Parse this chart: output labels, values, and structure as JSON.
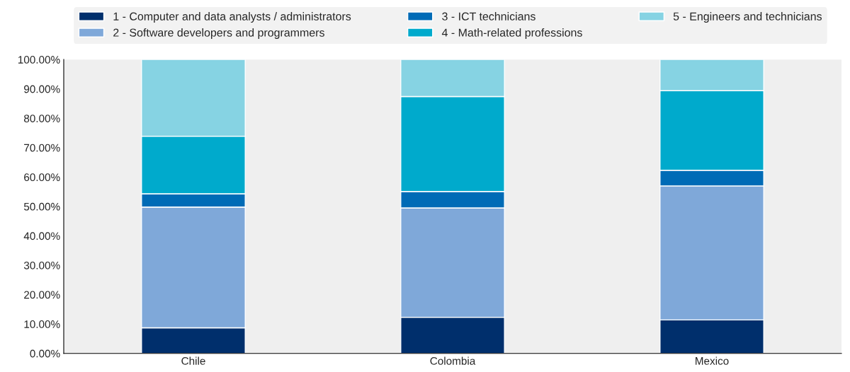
{
  "chart_data": {
    "type": "bar",
    "stacked": true,
    "categories": [
      "Chile",
      "Colombia",
      "Mexico"
    ],
    "series": [
      {
        "name": "1 - Computer and data analysts / administrators",
        "color": "#002f6c",
        "values": [
          8.7,
          12.3,
          11.4
        ]
      },
      {
        "name": "2 - Software developers and programmers",
        "color": "#7fa8d9",
        "values": [
          41.1,
          37.2,
          45.6
        ]
      },
      {
        "name": "3 - ICT technicians",
        "color": "#006bb6",
        "values": [
          4.5,
          5.6,
          5.3
        ]
      },
      {
        "name": "4 - Math-related professions",
        "color": "#00aacc",
        "values": [
          19.6,
          32.3,
          27.1
        ]
      },
      {
        "name": "5 - Engineers and technicians",
        "color": "#86d3e3",
        "values": [
          26.1,
          12.6,
          10.6
        ]
      }
    ],
    "ylim": [
      0,
      100
    ],
    "yticks": [
      {
        "value": 0,
        "label": "0.00%"
      },
      {
        "value": 10,
        "label": "10.00%"
      },
      {
        "value": 20,
        "label": "20.00%"
      },
      {
        "value": 30,
        "label": "30.00%"
      },
      {
        "value": 40,
        "label": "40.00%"
      },
      {
        "value": 50,
        "label": "50.00%"
      },
      {
        "value": 60,
        "label": "60.00%"
      },
      {
        "value": 70,
        "label": "70.00%"
      },
      {
        "value": 80,
        "label": "80.00%"
      },
      {
        "value": 90,
        "label": "90.00%"
      },
      {
        "value": 100,
        "label": "100.00%"
      }
    ],
    "legend": "top"
  }
}
